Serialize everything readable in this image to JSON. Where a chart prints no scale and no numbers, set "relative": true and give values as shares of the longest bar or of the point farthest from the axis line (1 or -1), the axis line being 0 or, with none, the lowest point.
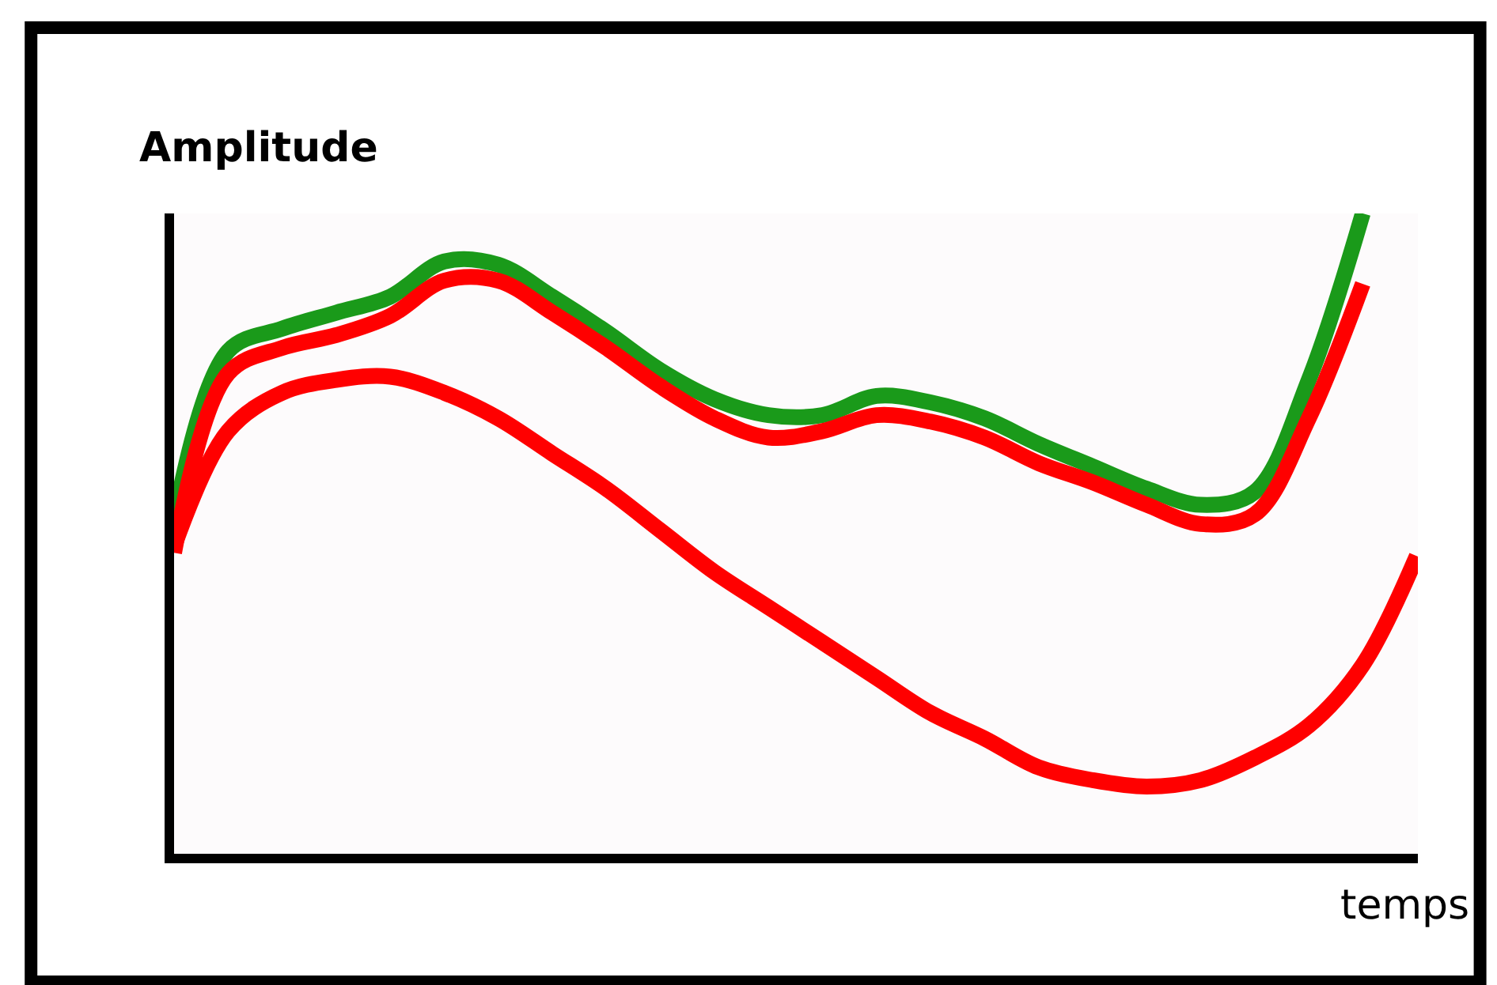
{
  "chart_data": {
    "type": "line",
    "xlabel": "temps",
    "ylabel": "Amplitude",
    "relative": true,
    "legend": false,
    "marker": "none",
    "line_style": "solid",
    "categories": [
      null,
      null,
      null,
      null,
      null,
      null,
      null,
      null,
      null,
      null,
      null,
      null,
      null,
      null,
      null,
      null,
      null,
      null,
      null,
      null,
      null,
      null,
      null,
      null
    ],
    "series": [
      {
        "color": "#1a9a1a",
        "values": [
          0.52,
          0.785,
          0.82,
          0.845,
          0.87,
          0.925,
          0.92,
          0.87,
          0.815,
          0.755,
          0.71,
          0.685,
          0.685,
          0.715,
          0.705,
          0.68,
          0.64,
          0.605,
          0.57,
          0.545,
          0.565,
          0.74,
          1,
          null
        ]
      },
      {
        "color": "#ff0000",
        "values": [
          0.47,
          0.75,
          0.79,
          0.81,
          0.84,
          0.895,
          0.895,
          0.845,
          0.79,
          0.73,
          0.68,
          0.65,
          0.66,
          0.685,
          0.675,
          0.65,
          0.61,
          0.58,
          0.545,
          0.515,
          0.53,
          0.68,
          0.89,
          null
        ]
      },
      {
        "color": "#ff0000",
        "values": [
          0.48,
          0.66,
          0.72,
          0.74,
          0.745,
          0.72,
          0.68,
          0.625,
          0.57,
          0.505,
          0.44,
          0.385,
          0.33,
          0.275,
          0.22,
          0.18,
          0.135,
          0.115,
          0.105,
          0.115,
          0.15,
          0.2,
          0.295,
          0.465
        ]
      }
    ]
  }
}
